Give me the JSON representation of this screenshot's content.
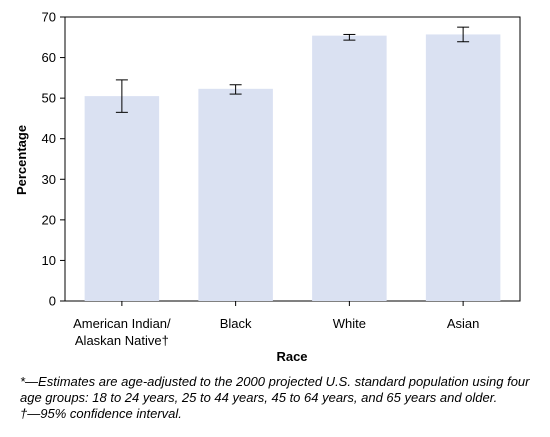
{
  "chart_data": {
    "type": "bar",
    "categories": [
      "American Indian/ Alaskan Native†",
      "Black",
      "White",
      "Asian"
    ],
    "category_lines": [
      [
        "American Indian/",
        "Alaskan Native†"
      ],
      [
        "Black"
      ],
      [
        "White"
      ],
      [
        "Asian"
      ]
    ],
    "values": [
      50.5,
      52.3,
      65.4,
      65.7
    ],
    "ci_lower": [
      46.5,
      51.0,
      64.3,
      63.9
    ],
    "ci_upper": [
      54.5,
      53.3,
      65.7,
      67.5
    ],
    "xlabel": "Race",
    "ylabel": "Percentage",
    "ylim": [
      0,
      70
    ],
    "yticks": [
      0,
      10,
      20,
      30,
      40,
      50,
      60,
      70
    ],
    "grid": false,
    "bar_color": "#dae1f2"
  },
  "footnotes": {
    "age_adjusted": "*—Estimates are age-adjusted to the 2000 projected U.S. standard population using four age groups: 18 to 24 years, 25 to 44 years, 45 to 64 years, and 65 years and older.",
    "confidence_interval": "†—95% confidence interval."
  }
}
